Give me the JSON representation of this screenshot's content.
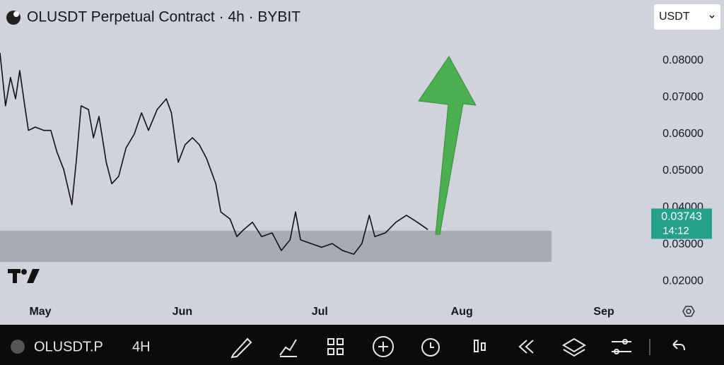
{
  "header": {
    "title": "OLUSDT Perpetual Contract · 4h · BYBIT",
    "currency": "USDT"
  },
  "chart_data": {
    "type": "line",
    "x": [
      -8.8,
      -7.6,
      -6.5,
      -5.4,
      -4.5,
      -3.4,
      -2.6,
      -1.1,
      0.8,
      2.3,
      3.6,
      5.1,
      6.9,
      7.9,
      8.9,
      10.5,
      11.6,
      12.8,
      14.4,
      15.6,
      17.1,
      18.7,
      20.5,
      22.1,
      23.6,
      25.5,
      27.5,
      28.6,
      30.1,
      31.6,
      33.2,
      34.7,
      36.3,
      38.3,
      39.4,
      41.4,
      42.9,
      44.4,
      46.3,
      48.3,
      50.6,
      52.6,
      54.5,
      55.7,
      56.8,
      59.1,
      61.4,
      63.7,
      66.0,
      68.4,
      70.2,
      71.8,
      73.0,
      75.3,
      77.6,
      79.9,
      82.3,
      84.6
    ],
    "series": [
      {
        "name": "OLUSDT",
        "color": "#111111",
        "values": [
          0.0821,
          0.0677,
          0.0754,
          0.0696,
          0.0773,
          0.0677,
          0.061,
          0.0619,
          0.061,
          0.061,
          0.0552,
          0.0504,
          0.0408,
          0.0533,
          0.0677,
          0.0667,
          0.059,
          0.0648,
          0.0523,
          0.0465,
          0.0485,
          0.0562,
          0.06,
          0.0658,
          0.061,
          0.0667,
          0.0696,
          0.0658,
          0.0523,
          0.0571,
          0.059,
          0.0571,
          0.0533,
          0.0465,
          0.0388,
          0.0369,
          0.0321,
          0.034,
          0.036,
          0.0321,
          0.0331,
          0.0283,
          0.0312,
          0.0388,
          0.0312,
          0.0302,
          0.0292,
          0.0302,
          0.0283,
          0.0273,
          0.0302,
          0.0379,
          0.0321,
          0.0331,
          0.036,
          0.0379,
          0.036,
          0.034
        ]
      }
    ],
    "xlim": [
      -8.8,
      132.4
    ],
    "xticks": [
      {
        "value": 0,
        "label": "May"
      },
      {
        "value": 31,
        "label": "Jun"
      },
      {
        "value": 61,
        "label": "Jul"
      },
      {
        "value": 92,
        "label": "Aug"
      },
      {
        "value": 123,
        "label": "Sep"
      }
    ],
    "ylim": [
      0.0081,
      0.0965
    ],
    "yticks": [
      {
        "value": 0.02,
        "label": "0.02000"
      },
      {
        "value": 0.03,
        "label": "0.03000"
      },
      {
        "value": 0.04,
        "label": "0.04000"
      },
      {
        "value": 0.05,
        "label": "0.05000"
      },
      {
        "value": 0.06,
        "label": "0.06000"
      },
      {
        "value": 0.07,
        "label": "0.07000"
      },
      {
        "value": 0.08,
        "label": "0.08000"
      }
    ],
    "zone": {
      "xlim": [
        -8.8,
        111.6
      ],
      "ylim": [
        0.0252,
        0.0337
      ],
      "color": "#a9abb2"
    },
    "last_price": 0.03743,
    "countdown": "14:12",
    "last_price_color": "#26a08a"
  },
  "toolbar": {
    "symbol": "OLUSDT.P",
    "interval": "4H"
  }
}
